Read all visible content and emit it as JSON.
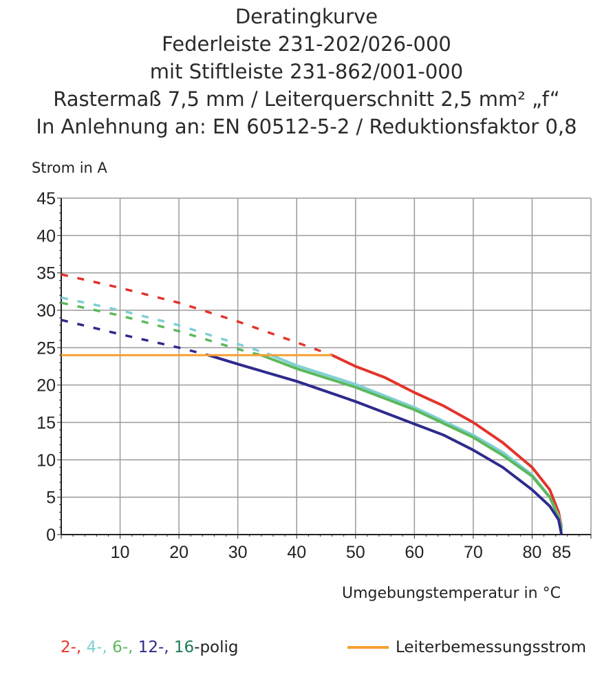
{
  "title_lines": [
    "Deratingkurve",
    "Federleiste 231-202/026-000",
    "mit Stiftleiste 231-862/001-000",
    "Rastermaß 7,5 mm / Leiterquerschnitt 2,5 mm² „f“",
    "In Anlehnung an: EN 60512-5-2 / Reduktionsfaktor 0,8"
  ],
  "chart_data": {
    "type": "line",
    "xlabel": "Umgebungstemperatur in °C",
    "ylabel": "Strom in A",
    "xlim": [
      0,
      90
    ],
    "ylim": [
      0,
      45
    ],
    "xticks": [
      10,
      20,
      30,
      40,
      50,
      60,
      70,
      80,
      85
    ],
    "yticks": [
      0,
      5,
      10,
      15,
      20,
      25,
      30,
      35,
      40,
      45
    ],
    "grid": true,
    "series": [
      {
        "color": "#e3342a",
        "dashed_until_x": 46,
        "points": [
          [
            0,
            34.8
          ],
          [
            10,
            33
          ],
          [
            20,
            31
          ],
          [
            30,
            28.5
          ],
          [
            40,
            25.7
          ],
          [
            46,
            24
          ],
          [
            50,
            22.5
          ],
          [
            55,
            21
          ],
          [
            60,
            19
          ],
          [
            65,
            17.2
          ],
          [
            70,
            15
          ],
          [
            75,
            12.3
          ],
          [
            80,
            9
          ],
          [
            83,
            6
          ],
          [
            84.5,
            3
          ],
          [
            85,
            1
          ]
        ]
      },
      {
        "color": "#7fd0d4",
        "dashed_until_x": 35,
        "points": [
          [
            0,
            31.7
          ],
          [
            10,
            30
          ],
          [
            20,
            28
          ],
          [
            30,
            25.5
          ],
          [
            35,
            24.2
          ],
          [
            40,
            22.6
          ],
          [
            50,
            20.1
          ],
          [
            60,
            17
          ],
          [
            70,
            13.3
          ],
          [
            75,
            11
          ],
          [
            80,
            8
          ],
          [
            83,
            5
          ],
          [
            84.5,
            2.5
          ],
          [
            85,
            0.8
          ]
        ]
      },
      {
        "color": "#5cb85c",
        "dashed_until_x": 34,
        "points": [
          [
            0,
            31
          ],
          [
            10,
            29.3
          ],
          [
            20,
            27.2
          ],
          [
            30,
            24.8
          ],
          [
            34,
            24
          ],
          [
            40,
            22.2
          ],
          [
            50,
            19.7
          ],
          [
            60,
            16.7
          ],
          [
            70,
            13
          ],
          [
            75,
            10.6
          ],
          [
            80,
            7.8
          ],
          [
            83,
            5
          ],
          [
            84.5,
            2.3
          ],
          [
            85,
            0.5
          ]
        ]
      },
      {
        "color": "#2e2a8c",
        "dashed_until_x": 25,
        "points": [
          [
            0,
            28.7
          ],
          [
            10,
            26.8
          ],
          [
            20,
            25
          ],
          [
            25,
            24
          ],
          [
            30,
            22.8
          ],
          [
            40,
            20.5
          ],
          [
            50,
            17.8
          ],
          [
            60,
            14.8
          ],
          [
            65,
            13.3
          ],
          [
            70,
            11.3
          ],
          [
            75,
            9
          ],
          [
            80,
            6
          ],
          [
            83,
            3.8
          ],
          [
            84.5,
            2
          ],
          [
            85,
            0
          ]
        ]
      },
      {
        "name": "Leiterbemessungsstrom",
        "color": "#f5a030",
        "dashed_until_x": 0,
        "points": [
          [
            0,
            24
          ],
          [
            46,
            24
          ]
        ]
      }
    ],
    "legend": {
      "placement": "bottom",
      "pole_items": [
        {
          "text": "2-,",
          "color": "#e3342a"
        },
        {
          "text": " 4-,",
          "color": "#7fd0d4"
        },
        {
          "text": " 6-,",
          "color": "#5cb85c"
        },
        {
          "text": " 12-,",
          "color": "#2e2a8c"
        },
        {
          "text": " 16",
          "color": "#1e7a55"
        },
        {
          "text": "-polig",
          "color": "#222222"
        }
      ],
      "rated_label": "Leiterbemessungsstrom",
      "rated_color": "#f5a030"
    }
  }
}
